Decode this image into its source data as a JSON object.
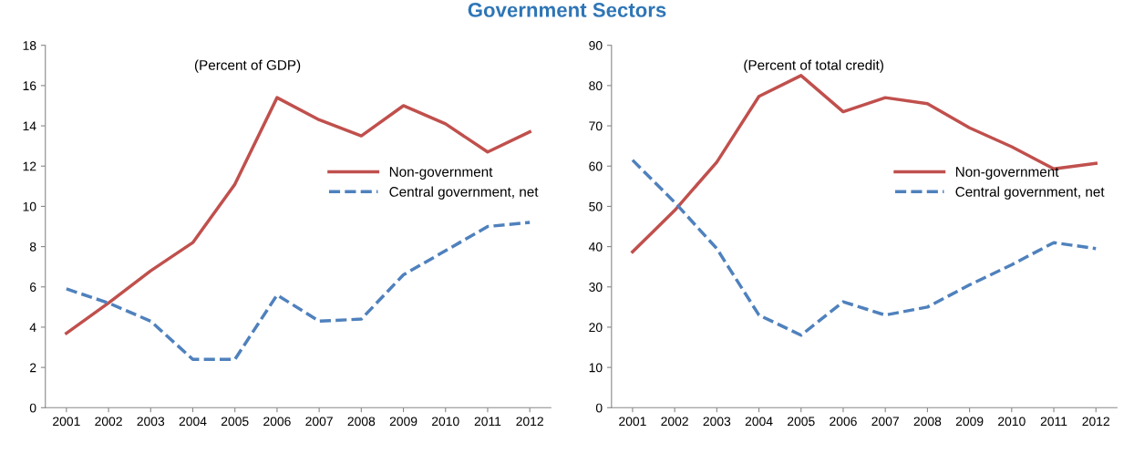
{
  "chart_data": [
    {
      "type": "line",
      "title": "Government Sectors",
      "subtitle": "(Percent of GDP)",
      "categories": [
        "2001",
        "2002",
        "2003",
        "2004",
        "2005",
        "2006",
        "2007",
        "2008",
        "2009",
        "2010",
        "2011",
        "2012"
      ],
      "series": [
        {
          "name": "Non-government",
          "color": "#c0504d",
          "line_style": "solid",
          "values": [
            3.7,
            5.2,
            6.8,
            8.2,
            11.1,
            15.4,
            14.3,
            13.5,
            15.0,
            14.1,
            12.7,
            13.7
          ]
        },
        {
          "name": "Central government, net",
          "color": "#4f81bd",
          "line_style": "dashed",
          "values": [
            5.9,
            5.2,
            4.3,
            2.4,
            2.4,
            5.6,
            4.3,
            4.4,
            6.6,
            7.8,
            9.0,
            9.2
          ]
        }
      ],
      "ylim": [
        0,
        18
      ],
      "yticks": [
        0,
        2,
        4,
        6,
        8,
        10,
        12,
        14,
        16,
        18
      ],
      "grid": false,
      "legend": "right"
    },
    {
      "type": "line",
      "subtitle": "(Percent of total credit)",
      "categories": [
        "2001",
        "2002",
        "2003",
        "2004",
        "2005",
        "2006",
        "2007",
        "2008",
        "2009",
        "2010",
        "2011",
        "2012"
      ],
      "series": [
        {
          "name": "Non-government",
          "color": "#c0504d",
          "line_style": "solid",
          "values": [
            38.7,
            49,
            61,
            77.3,
            82.5,
            73.5,
            77,
            75.5,
            69.5,
            64.8,
            59.3,
            60.7
          ]
        },
        {
          "name": "Central government, net",
          "color": "#4f81bd",
          "line_style": "dashed",
          "values": [
            61.5,
            51,
            39.5,
            23,
            18,
            26.3,
            23,
            25,
            30.5,
            35.5,
            41,
            39.5
          ]
        }
      ],
      "ylim": [
        0,
        90
      ],
      "yticks": [
        0,
        10,
        20,
        30,
        40,
        50,
        60,
        70,
        80,
        90
      ],
      "grid": false,
      "legend": "right"
    }
  ]
}
